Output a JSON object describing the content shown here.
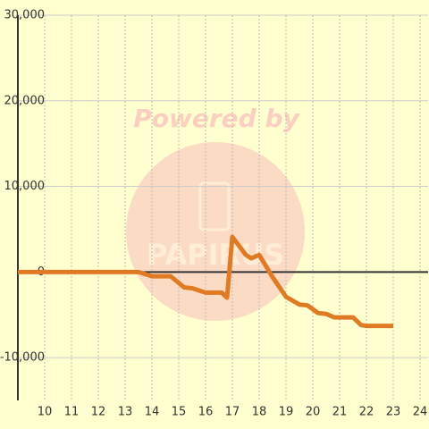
{
  "chart_data": {
    "type": "line",
    "watermark": "Powered by",
    "x": [
      9,
      13.5,
      14,
      14.7,
      15.2,
      15.5,
      16,
      16.6,
      16.8,
      17,
      17.5,
      17.7,
      18,
      18.5,
      19,
      19.5,
      19.8,
      20.2,
      20.5,
      20.8,
      21.5,
      21.8,
      22,
      23
    ],
    "series": [
      {
        "color": "#e07b24",
        "values": [
          0,
          0,
          -500,
          -500,
          -1800,
          -1900,
          -2400,
          -2400,
          -3000,
          4100,
          2000,
          1600,
          2000,
          -600,
          -2900,
          -3800,
          -3900,
          -4800,
          -4900,
          -5300,
          -5300,
          -6200,
          -6300,
          -6300
        ]
      }
    ],
    "xlim": [
      9,
      24.3
    ],
    "xticks": [
      10,
      11,
      12,
      13,
      14,
      15,
      16,
      17,
      18,
      19,
      20,
      21,
      22,
      23,
      24
    ],
    "ylim": [
      -15000,
      30000
    ],
    "yticks": [
      {
        "value": 30000,
        "label": "30,000"
      },
      {
        "value": 20000,
        "label": "20,000"
      },
      {
        "value": 10000,
        "label": "10,000"
      },
      0,
      {
        "value": -10000,
        "label": "-10,000"
      }
    ],
    "grid": true
  }
}
